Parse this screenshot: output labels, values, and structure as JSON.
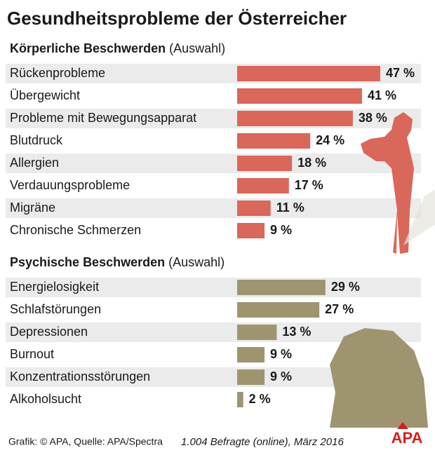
{
  "title": "Gesundheitsprobleme der Österreicher",
  "chart_data": [
    {
      "type": "bar",
      "orientation": "horizontal",
      "title": "Körperliche Beschwerden",
      "subtitle": "(Auswahl)",
      "categories": [
        "Rückenprobleme",
        "Übergewicht",
        "Probleme mit Bewegungsapparat",
        "Blutdruck",
        "Allergien",
        "Verdauungsprobleme",
        "Migräne",
        "Chronische Schmerzen"
      ],
      "values": [
        47,
        41,
        38,
        24,
        18,
        17,
        11,
        9
      ],
      "value_labels": [
        "47 %",
        "41 %",
        "38 %",
        "24 %",
        "18 %",
        "17 %",
        "11 %",
        "9 %"
      ],
      "color": "#d9675a"
    },
    {
      "type": "bar",
      "orientation": "horizontal",
      "title": "Psychische Beschwerden",
      "subtitle": "(Auswahl)",
      "categories": [
        "Energielosigkeit",
        "Schlafstörungen",
        "Depressionen",
        "Burnout",
        "Konzentrationsstörungen",
        "Alkoholsucht"
      ],
      "values": [
        29,
        27,
        13,
        9,
        9,
        2
      ],
      "value_labels": [
        "29 %",
        "27 %",
        "13 %",
        "9 %",
        "9 %",
        "2 %"
      ],
      "color": "#9e9470"
    }
  ],
  "source": "Grafik: © APA, Quelle: APA/Spectra",
  "note": "1.004 Befragte (online), März 2016",
  "logo": "APA"
}
